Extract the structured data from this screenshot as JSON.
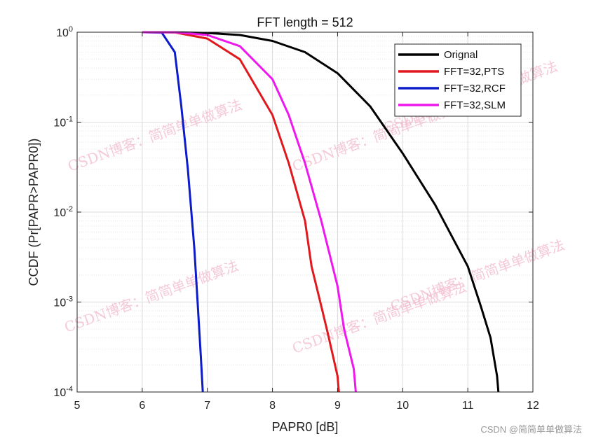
{
  "chart_data": {
    "type": "line",
    "title": "FFT length = 512",
    "xlabel": "PAPR0 [dB]",
    "ylabel": "CCDF (Pr[PAPR>PAPR0])",
    "xlim": [
      5,
      12
    ],
    "ylim": [
      0.0001,
      1
    ],
    "yscale": "log",
    "grid": true,
    "legend_position": "top-right",
    "x_ticks": [
      "5",
      "6",
      "7",
      "8",
      "9",
      "10",
      "11",
      "12"
    ],
    "y_ticks": [
      {
        "base": "10",
        "exp": "0"
      },
      {
        "base": "10",
        "exp": "-1"
      },
      {
        "base": "10",
        "exp": "-2"
      },
      {
        "base": "10",
        "exp": "-3"
      },
      {
        "base": "10",
        "exp": "-4"
      }
    ],
    "series": [
      {
        "name": "Orignal",
        "color": "#000000",
        "x": [
          6.0,
          6.5,
          7.0,
          7.5,
          8.0,
          8.5,
          9.0,
          9.5,
          10.0,
          10.5,
          11.0,
          11.2,
          11.35,
          11.45,
          11.47
        ],
        "y": [
          1.0,
          0.998,
          0.98,
          0.93,
          0.8,
          0.6,
          0.35,
          0.15,
          0.045,
          0.012,
          0.0025,
          0.0009,
          0.0004,
          0.00015,
          0.0001
        ]
      },
      {
        "name": "FFT=32,PTS",
        "color": "#e0191e",
        "x": [
          6.0,
          6.5,
          7.0,
          7.5,
          8.0,
          8.25,
          8.5,
          8.6,
          8.75,
          8.85,
          9.0,
          9.02
        ],
        "y": [
          1.0,
          0.995,
          0.85,
          0.5,
          0.12,
          0.035,
          0.008,
          0.0025,
          0.0009,
          0.00045,
          0.00015,
          0.0001
        ]
      },
      {
        "name": "FFT=32,RCF",
        "color": "#0d1cc9",
        "x": [
          6.0,
          6.3,
          6.5,
          6.6,
          6.7,
          6.8,
          6.85,
          6.9,
          6.93
        ],
        "y": [
          1.0,
          0.99,
          0.6,
          0.15,
          0.03,
          0.004,
          0.001,
          0.00025,
          0.0001
        ]
      },
      {
        "name": "FFT=32,SLM",
        "color": "#ee18ee",
        "x": [
          6.0,
          6.5,
          7.0,
          7.5,
          8.0,
          8.25,
          8.5,
          8.75,
          9.0,
          9.1,
          9.25,
          9.28
        ],
        "y": [
          1.0,
          0.998,
          0.93,
          0.7,
          0.3,
          0.12,
          0.035,
          0.008,
          0.0015,
          0.0005,
          0.00018,
          0.0001
        ]
      }
    ]
  },
  "watermark": "CSDN博客：简简单单做算法",
  "credit": "CSDN @简简单单做算法"
}
